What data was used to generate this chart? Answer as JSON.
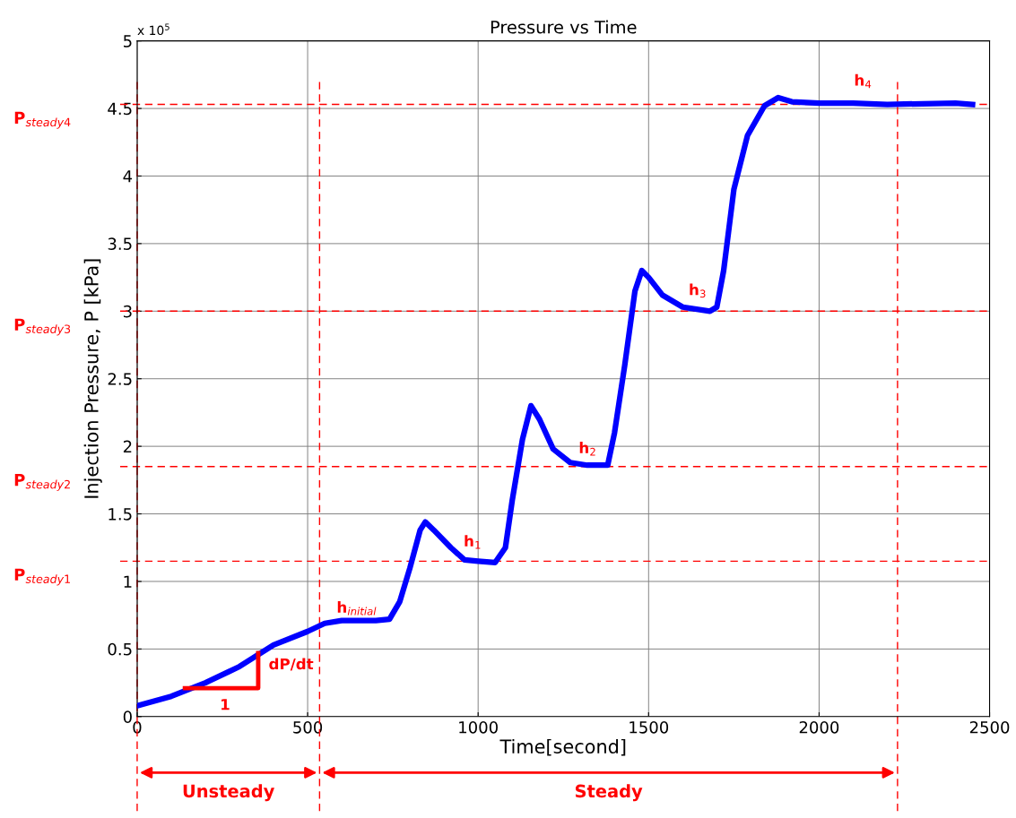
{
  "chart_data": {
    "type": "line",
    "title": "Pressure vs Time",
    "xlabel": "Time[second]",
    "ylabel": "Injection Pressure, P [kPa]",
    "x": [
      0,
      100,
      200,
      300,
      350,
      400,
      500,
      550,
      600,
      700,
      740,
      770,
      800,
      830,
      845,
      870,
      920,
      960,
      1000,
      1050,
      1080,
      1100,
      1130,
      1155,
      1180,
      1220,
      1270,
      1320,
      1380,
      1400,
      1430,
      1460,
      1480,
      1500,
      1540,
      1600,
      1680,
      1700,
      1720,
      1750,
      1790,
      1840,
      1880,
      1920,
      2000,
      2100,
      2200,
      2400,
      2450
    ],
    "series": [
      {
        "color": "#0000ff",
        "values": [
          0.08,
          0.15,
          0.25,
          0.37,
          0.45,
          0.53,
          0.63,
          0.69,
          0.71,
          0.71,
          0.72,
          0.85,
          1.1,
          1.38,
          1.44,
          1.38,
          1.25,
          1.16,
          1.15,
          1.14,
          1.25,
          1.6,
          2.05,
          2.3,
          2.2,
          1.98,
          1.88,
          1.86,
          1.86,
          2.1,
          2.6,
          3.15,
          3.3,
          3.25,
          3.12,
          3.03,
          3.0,
          3.03,
          3.3,
          3.9,
          4.3,
          4.52,
          4.58,
          4.55,
          4.54,
          4.54,
          4.53,
          4.54,
          4.53
        ]
      }
    ],
    "xlim": [
      0,
      2500
    ],
    "xticks": [
      0,
      500,
      1000,
      1500,
      2000,
      2500
    ],
    "ylim": [
      0,
      5
    ],
    "yticks": [
      0,
      0.5,
      1,
      1.5,
      2,
      2.5,
      3,
      3.5,
      4,
      4.5,
      5
    ],
    "grid": true,
    "legend": false,
    "marker": "none",
    "line_style": "solid",
    "ref_lines": [
      {
        "axis": "y",
        "value": 4.53,
        "label": "P$_{steady4}$",
        "color": "#ff0000",
        "line_style": "dashed"
      },
      {
        "axis": "y",
        "value": 3.0,
        "label": "P$_{steady3}$",
        "color": "#ff0000",
        "line_style": "dashed"
      },
      {
        "axis": "y",
        "value": 1.85,
        "label": "P$_{steady2}$",
        "color": "#ff0000",
        "line_style": "dashed"
      },
      {
        "axis": "y",
        "value": 1.15,
        "label": "P$_{steady1}$",
        "color": "#ff0000",
        "line_style": "dashed"
      },
      {
        "axis": "x",
        "value": 0,
        "label": "Unsteady",
        "color": "#ff0000",
        "line_style": "dashed"
      },
      {
        "axis": "x",
        "value": 535,
        "label": "Steady",
        "color": "#ff0000",
        "line_style": "dashed"
      },
      {
        "axis": "x",
        "value": 2230,
        "color": "#ff0000",
        "line_style": "dashed"
      }
    ],
    "annotations": [
      "x 10$^{5}$",
      "h$_{initial}$",
      "h$_{1}$",
      "h$_{2}$",
      "h$_{3}$",
      "h$_{4}$",
      {
        "text": "dP/dt",
        "x": 355,
        "y": 0.45
      },
      "1"
    ]
  }
}
